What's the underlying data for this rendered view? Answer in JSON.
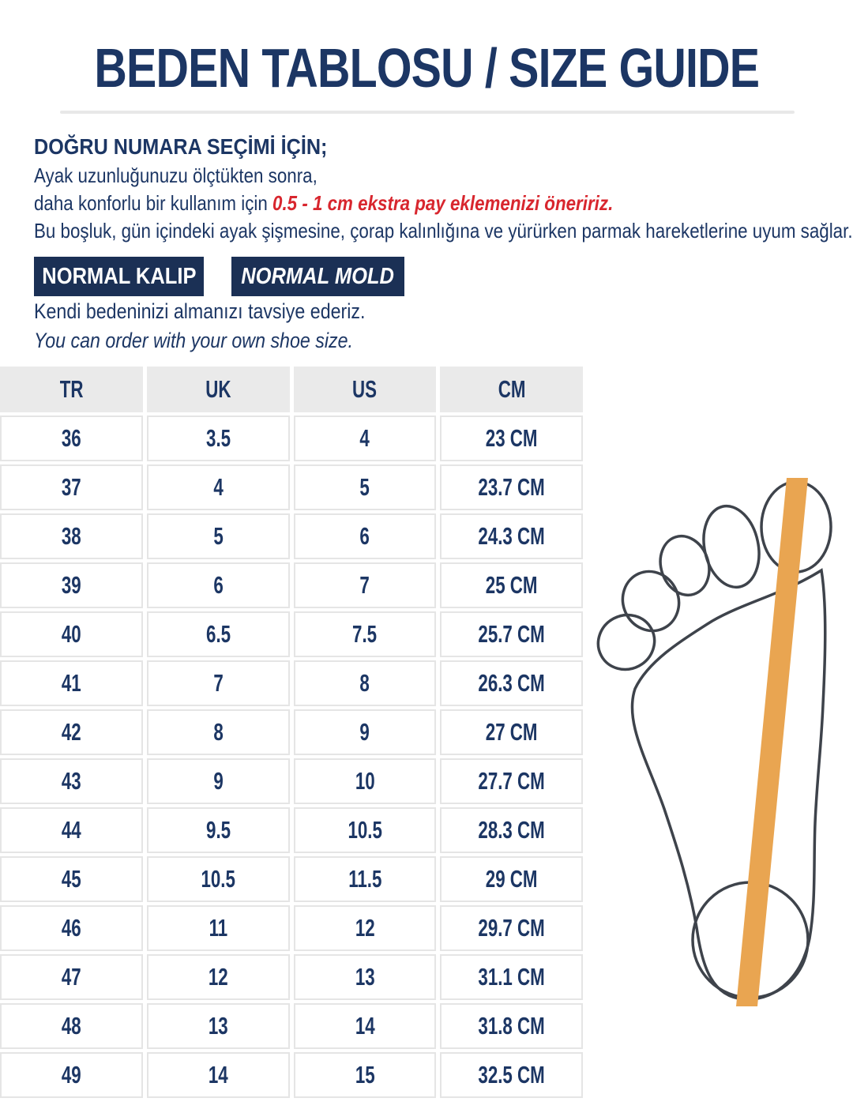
{
  "page": {
    "title": "BEDEN TABLOSU / SIZE GUIDE"
  },
  "intro": {
    "heading": "DOĞRU NUMARA SEÇİMİ İÇİN;",
    "line1": "Ayak uzunluğunuzu ölçtükten sonra,",
    "line2_prefix": "daha konforlu bir kullanım için ",
    "line2_highlight": "0.5 - 1 cm ekstra pay eklemenizi öneririz.",
    "line3": "Bu boşluk, gün içindeki ayak şişmesine, çorap kalınlığına ve yürürken parmak hareketlerine uyum sağlar."
  },
  "badges": {
    "tr": "NORMAL KALIP",
    "en": "NORMAL MOLD"
  },
  "advice": {
    "tr": "Kendi bedeninizi almanızı tavsiye ederiz.",
    "en": "You can order with your own shoe size."
  },
  "size_table": {
    "columns": [
      "TR",
      "UK",
      "US",
      "CM"
    ],
    "rows": [
      [
        "36",
        "3.5",
        "4",
        "23 CM"
      ],
      [
        "37",
        "4",
        "5",
        "23.7 CM"
      ],
      [
        "38",
        "5",
        "6",
        "24.3 CM"
      ],
      [
        "39",
        "6",
        "7",
        "25 CM"
      ],
      [
        "40",
        "6.5",
        "7.5",
        "25.7 CM"
      ],
      [
        "41",
        "7",
        "8",
        "26.3 CM"
      ],
      [
        "42",
        "8",
        "9",
        "27 CM"
      ],
      [
        "43",
        "9",
        "10",
        "27.7 CM"
      ],
      [
        "44",
        "9.5",
        "10.5",
        "28.3 CM"
      ],
      [
        "45",
        "10.5",
        "11.5",
        "29 CM"
      ],
      [
        "46",
        "11",
        "12",
        "29.7 CM"
      ],
      [
        "47",
        "12",
        "13",
        "31.1 CM"
      ],
      [
        "48",
        "13",
        "14",
        "31.8 CM"
      ],
      [
        "49",
        "14",
        "15",
        "32.5 CM"
      ]
    ]
  },
  "illustration": {
    "name": "foot-outline-with-measuring-stripe"
  },
  "colors": {
    "navy_text": "#1C3664",
    "badge_bg": "#1B3055",
    "accent_red": "#D8262E",
    "table_header_bg": "#EAEAEA",
    "table_border": "#E5E5E5",
    "stripe_orange": "#E9A551",
    "outline_gray": "#3E434B"
  }
}
